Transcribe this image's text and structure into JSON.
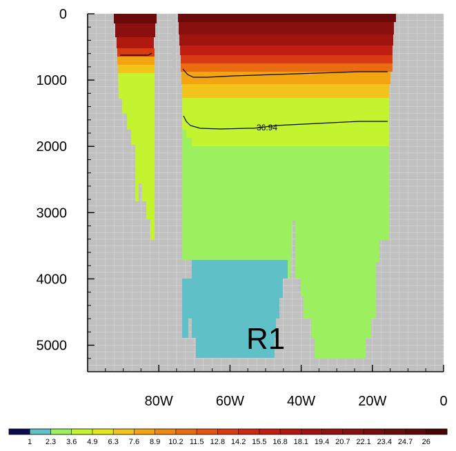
{
  "chart_data": {
    "type": "heatmap",
    "title": "",
    "xlabel": "",
    "ylabel": "",
    "x_axis": {
      "ticks": [
        {
          "value": -80,
          "label": "80W"
        },
        {
          "value": -60,
          "label": "60W"
        },
        {
          "value": -40,
          "label": "40W"
        },
        {
          "value": -20,
          "label": "20W"
        },
        {
          "value": 0,
          "label": "0"
        }
      ],
      "range": [
        -100,
        0
      ]
    },
    "y_axis": {
      "ticks": [
        {
          "value": 0,
          "label": "0"
        },
        {
          "value": 1000,
          "label": "1000"
        },
        {
          "value": 2000,
          "label": "2000"
        },
        {
          "value": 3000,
          "label": "3000"
        },
        {
          "value": 4000,
          "label": "4000"
        },
        {
          "value": 5000,
          "label": "5000"
        }
      ],
      "range": [
        0,
        5400
      ],
      "reversed": true
    },
    "colorbar": {
      "levels": [
        "1",
        "2.3",
        "3.6",
        "4.9",
        "6.3",
        "7.6",
        "8.9",
        "10.2",
        "11.5",
        "12.8",
        "14.2",
        "15.5",
        "16.8",
        "18.1",
        "19.4",
        "20.7",
        "22.1",
        "23.4",
        "24.7",
        "26"
      ],
      "colors": [
        "#0a0a50",
        "#5fc0c8",
        "#9cf060",
        "#c4f430",
        "#e6e620",
        "#f2c41a",
        "#f2a510",
        "#ef8a10",
        "#ea6c10",
        "#e45412",
        "#d83a12",
        "#cc2a10",
        "#bf1e10",
        "#b01810",
        "#a01410",
        "#921210",
        "#841010",
        "#760e0e",
        "#680c0c",
        "#5a0808",
        "#4a0404"
      ]
    },
    "contours": [
      {
        "label": "36.94"
      }
    ],
    "annotations": [
      {
        "text": "R1"
      }
    ],
    "land_color": "#c0c0c0",
    "grid": true
  }
}
